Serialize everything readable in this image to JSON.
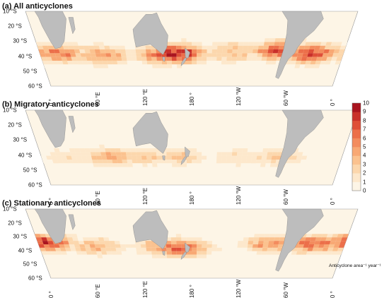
{
  "panels": [
    {
      "title": "(a) All anticyclones"
    },
    {
      "title": "(b) Migratory anticyclones"
    },
    {
      "title": "(c) Stationary anticyclones"
    }
  ],
  "lat_labels": [
    "10 °S",
    "20 °S",
    "30 °S",
    "40 °S",
    "50 °S",
    "60 °S"
  ],
  "lon_labels": [
    "0 °",
    "60 °E",
    "120 °E",
    "180 °",
    "120 °W",
    "60 °W",
    "0 °"
  ],
  "colorbar": {
    "ticks": [
      "0",
      "1",
      "2",
      "3",
      "4",
      "5",
      "6",
      "7",
      "8",
      "9",
      "10"
    ],
    "title": "Anticyclone area⁻¹ year⁻¹",
    "colors": [
      "#fdf5e6",
      "#fde8cc",
      "#fcd7ad",
      "#fbc28f",
      "#f8a874",
      "#f38c5e",
      "#ec6f4a",
      "#df4f38",
      "#c9302a",
      "#a9141f"
    ],
    "land_color": "#bdbdbd"
  },
  "chart_data": {
    "type": "heatmap",
    "variable": "Anticyclone area⁻¹ year⁻¹",
    "x_range": [
      0,
      360
    ],
    "y_range_lat": [
      -10,
      -60
    ],
    "value_range": [
      0,
      10
    ],
    "panels": [
      {
        "name": "(a) All anticyclones",
        "peaks": [
          {
            "lon": 20,
            "lat": -37,
            "value": 6
          },
          {
            "lon": 70,
            "lat": -38,
            "value": 5
          },
          {
            "lon": 145,
            "lat": -38,
            "value": 7
          },
          {
            "lon": 160,
            "lat": -37,
            "value": 9
          },
          {
            "lon": 225,
            "lat": -36,
            "value": 4
          },
          {
            "lon": 280,
            "lat": -35,
            "value": 7
          },
          {
            "lon": 318,
            "lat": -37,
            "value": 8
          }
        ]
      },
      {
        "name": "(b) Migratory anticyclones",
        "peaks": [
          {
            "lon": 30,
            "lat": -40,
            "value": 2
          },
          {
            "lon": 80,
            "lat": -40,
            "value": 4
          },
          {
            "lon": 125,
            "lat": -40,
            "value": 3
          },
          {
            "lon": 160,
            "lat": -40,
            "value": 3
          },
          {
            "lon": 230,
            "lat": -40,
            "value": 2
          },
          {
            "lon": 280,
            "lat": -40,
            "value": 3
          }
        ]
      },
      {
        "name": "(c) Stationary anticyclones",
        "peaks": [
          {
            "lon": 5,
            "lat": -33,
            "value": 8
          },
          {
            "lon": 65,
            "lat": -36,
            "value": 4
          },
          {
            "lon": 150,
            "lat": -36,
            "value": 6
          },
          {
            "lon": 165,
            "lat": -37,
            "value": 7
          },
          {
            "lon": 270,
            "lat": -34,
            "value": 5
          },
          {
            "lon": 320,
            "lat": -34,
            "value": 7
          }
        ]
      }
    ]
  }
}
